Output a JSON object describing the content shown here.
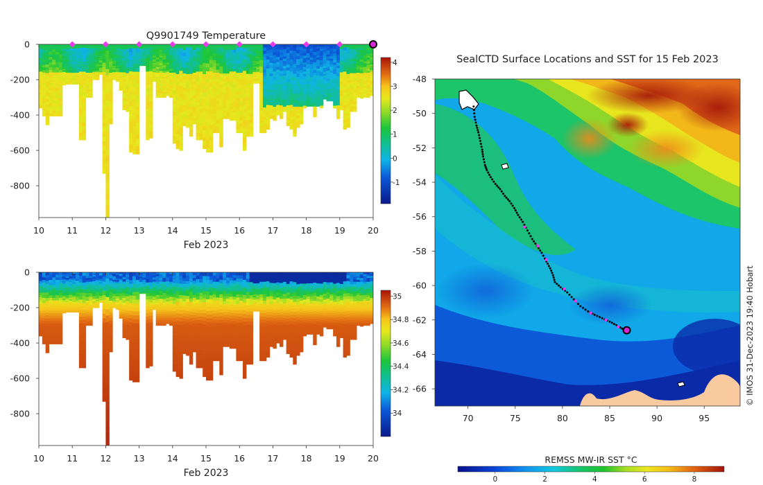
{
  "chart_data": [
    {
      "type": "heatmap",
      "id": "temperature_section",
      "title": "Q9901749  Temperature",
      "xlabel": "Feb 2023",
      "ylabel": "",
      "xlim": [
        10,
        20
      ],
      "ylim": [
        -980,
        0
      ],
      "xticks": [
        "10",
        "11",
        "12",
        "13",
        "14",
        "15",
        "16",
        "17",
        "18",
        "19",
        "20"
      ],
      "yticks": [
        "0",
        "-200",
        "-400",
        "-600",
        "-800"
      ],
      "ytick_values": [
        0,
        -200,
        -400,
        -600,
        -800
      ],
      "colorbar": {
        "min": -1.9,
        "max": 4.2,
        "ticks": [
          "4",
          "3",
          "2",
          "1",
          "0",
          "-1"
        ],
        "tick_values": [
          4,
          3,
          2,
          1,
          0,
          -1
        ]
      },
      "profile_markers_x": [
        11,
        12,
        13,
        14,
        15,
        16,
        17,
        18,
        19
      ],
      "current_position_x": 20,
      "profile_depths": [
        360,
        405,
        455,
        405,
        405,
        405,
        405,
        230,
        225,
        225,
        225,
        225,
        540,
        540,
        300,
        300,
        200,
        200,
        170,
        730,
        980,
        450,
        200,
        210,
        260,
        370,
        380,
        610,
        620,
        620,
        120,
        120,
        540,
        530,
        210,
        300,
        300,
        300,
        290,
        300,
        560,
        590,
        600,
        460,
        470,
        520,
        450,
        540,
        540,
        590,
        610,
        610,
        500,
        500,
        580,
        420,
        420,
        430,
        430,
        500,
        500,
        600,
        520,
        520,
        220,
        220,
        500,
        500,
        480,
        420,
        430,
        400,
        420,
        380,
        460,
        480,
        520,
        470,
        450,
        360,
        350,
        350,
        410,
        350,
        360,
        310,
        320,
        320,
        360,
        420,
        370,
        480,
        470,
        380,
        380,
        300,
        305,
        300,
        300,
        290
      ]
    },
    {
      "type": "heatmap",
      "id": "salinity_section",
      "title": "",
      "xlabel": "Feb 2023",
      "xlim": [
        10,
        20
      ],
      "ylim": [
        -980,
        0
      ],
      "xticks": [
        "10",
        "11",
        "12",
        "13",
        "14",
        "15",
        "16",
        "17",
        "18",
        "19",
        "20"
      ],
      "yticks": [
        "0",
        "-200",
        "-400",
        "-600",
        "-800"
      ],
      "ytick_values": [
        0,
        -200,
        -400,
        -600,
        -800
      ],
      "colorbar": {
        "min": 33.8,
        "max": 35.05,
        "ticks": [
          "35",
          "34.8",
          "34.6",
          "34.4",
          "34.2",
          "34"
        ],
        "tick_values": [
          35,
          34.8,
          34.6,
          34.4,
          34.2,
          34
        ]
      }
    },
    {
      "type": "heatmap",
      "id": "sst_map",
      "title": "SealCTD Surface Locations and SST for 15 Feb 2023",
      "xticks": [
        "70",
        "75",
        "80",
        "85",
        "90",
        "95"
      ],
      "xtick_values": [
        70,
        75,
        80,
        85,
        90,
        95
      ],
      "yticks": [
        "-48",
        "-50",
        "-52",
        "-54",
        "-56",
        "-58",
        "-60",
        "-62",
        "-64",
        "-66"
      ],
      "ytick_values": [
        -48,
        -50,
        -52,
        -54,
        -56,
        -58,
        -60,
        -62,
        -64,
        -66
      ],
      "xlim": [
        66.5,
        98.8
      ],
      "ylim": [
        -67,
        -48
      ],
      "colorbar": {
        "label": "REMSS MW-IR SST °C",
        "min": -1.5,
        "max": 9.2,
        "ticks": [
          "0",
          "2",
          "4",
          "6",
          "8"
        ],
        "tick_values": [
          0,
          2,
          4,
          6,
          8
        ]
      },
      "track": [
        [
          70.6,
          -49.6
        ],
        [
          70.7,
          -50.2
        ],
        [
          70.9,
          -50.7
        ],
        [
          71.1,
          -51.1
        ],
        [
          71.3,
          -51.6
        ],
        [
          71.5,
          -52.1
        ],
        [
          71.6,
          -52.5
        ],
        [
          71.8,
          -53.0
        ],
        [
          72.0,
          -53.3
        ],
        [
          72.4,
          -53.7
        ],
        [
          72.9,
          -54.1
        ],
        [
          73.4,
          -54.4
        ],
        [
          73.9,
          -54.8
        ],
        [
          74.4,
          -55.1
        ],
        [
          74.9,
          -55.5
        ],
        [
          75.3,
          -55.9
        ],
        [
          75.8,
          -56.3
        ],
        [
          76.3,
          -56.8
        ],
        [
          76.8,
          -57.3
        ],
        [
          77.3,
          -57.7
        ],
        [
          77.8,
          -58.1
        ],
        [
          78.3,
          -58.6
        ],
        [
          78.7,
          -59.0
        ],
        [
          79.0,
          -59.4
        ],
        [
          79.2,
          -59.8
        ],
        [
          79.8,
          -60.1
        ],
        [
          80.5,
          -60.4
        ],
        [
          81.2,
          -60.8
        ],
        [
          81.9,
          -61.2
        ],
        [
          82.7,
          -61.5
        ],
        [
          83.4,
          -61.7
        ],
        [
          84.2,
          -61.9
        ],
        [
          85.0,
          -62.1
        ],
        [
          85.7,
          -62.3
        ],
        [
          86.3,
          -62.5
        ],
        [
          86.8,
          -62.6
        ]
      ],
      "daily_positions": [
        [
          76.0,
          -56.6
        ],
        [
          77.4,
          -57.7
        ],
        [
          78.3,
          -58.5
        ],
        [
          80.2,
          -60.2
        ],
        [
          81.4,
          -60.9
        ],
        [
          83.0,
          -61.6
        ],
        [
          84.6,
          -62.0
        ],
        [
          85.9,
          -62.4
        ]
      ],
      "current_position": [
        86.8,
        -62.6
      ]
    }
  ],
  "copyright": "© IMOS 31-Dec-2023 19:40 Hobart"
}
